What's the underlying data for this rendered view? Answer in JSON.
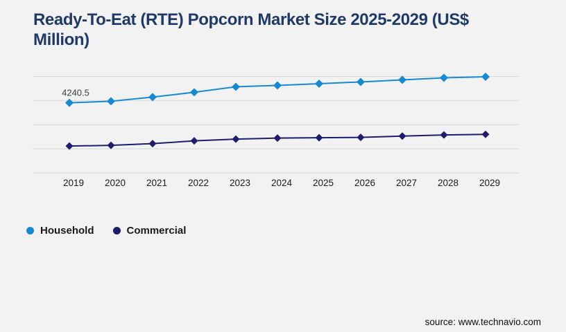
{
  "page": {
    "background_color": "#f2f2f2",
    "title_color": "#1f3a68",
    "gridline_color": "#d6d6d6",
    "axis_label_color": "#1a1a1a",
    "data_label_color": "#3d3d3d"
  },
  "title": {
    "text": "Ready-To-Eat (RTE) Popcorn Market Size 2025-2029 (US$ Million)"
  },
  "legend": {
    "items": [
      {
        "label": "Household",
        "color": "#1789d3"
      },
      {
        "label": "Commercial",
        "color": "#1f1b6d"
      }
    ]
  },
  "source": {
    "text": "source: www.technavio.com"
  },
  "chart_data": {
    "type": "line",
    "title": "Ready-To-Eat (RTE) Popcorn Market Size 2025-2029 (US$ Million)",
    "x": [
      2019,
      2020,
      2021,
      2022,
      2023,
      2024,
      2025,
      2026,
      2027,
      2028,
      2029
    ],
    "series": [
      {
        "name": "Household",
        "color": "#1789d3",
        "marker": "diamond",
        "values": [
          4240.5,
          4337,
          4587,
          4879,
          5212,
          5296,
          5400,
          5504,
          5630,
          5754,
          5817
        ]
      },
      {
        "name": "Commercial",
        "color": "#1f1b6d",
        "marker": "diamond",
        "values": [
          1626,
          1668,
          1772,
          1939,
          2043,
          2106,
          2127,
          2148,
          2231,
          2294,
          2335
        ]
      }
    ],
    "data_labels": [
      {
        "series": "Household",
        "x": 2019,
        "text": "4240.5"
      }
    ],
    "xlabel": "",
    "ylabel": "",
    "ylim": [
      0,
      5838
    ],
    "gridline_count": 5,
    "grid": "horizontal-only",
    "y_axis_tick_labels_visible": false,
    "legend_position": "bottom-left"
  }
}
